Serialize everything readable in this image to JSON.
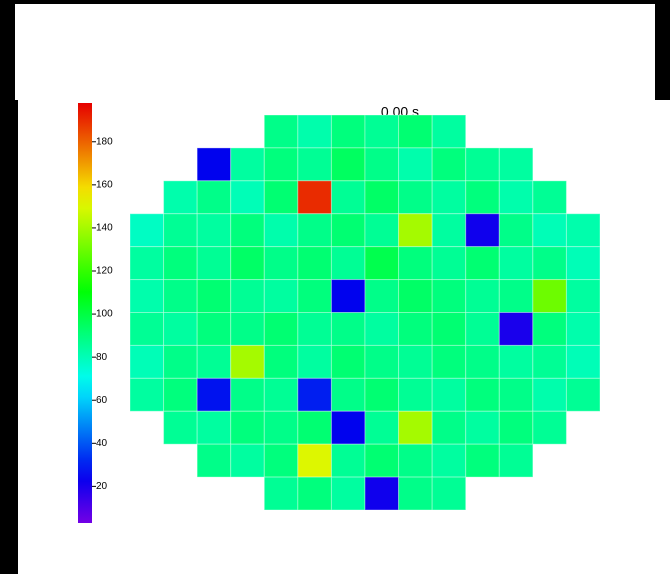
{
  "chart_data": {
    "type": "heatmap",
    "title": "0.00 s",
    "zlim": [
      3,
      198
    ],
    "zticks": [
      20,
      40,
      60,
      80,
      100,
      120,
      140,
      160,
      180
    ],
    "rows": [
      [
        null,
        null,
        null,
        null,
        88,
        82,
        90,
        86,
        92,
        84,
        null,
        null,
        null,
        null
      ],
      [
        null,
        null,
        25,
        84,
        90,
        86,
        95,
        88,
        82,
        90,
        86,
        84,
        null,
        null
      ],
      [
        null,
        82,
        88,
        80,
        92,
        190,
        86,
        94,
        88,
        84,
        90,
        82,
        86,
        null
      ],
      [
        78,
        86,
        84,
        90,
        82,
        88,
        92,
        86,
        140,
        84,
        22,
        88,
        80,
        82
      ],
      [
        84,
        90,
        86,
        94,
        88,
        92,
        86,
        98,
        90,
        86,
        92,
        84,
        88,
        80
      ],
      [
        82,
        88,
        92,
        86,
        84,
        90,
        25,
        88,
        94,
        90,
        86,
        88,
        130,
        84
      ],
      [
        86,
        84,
        90,
        88,
        92,
        86,
        88,
        84,
        90,
        92,
        86,
        20,
        90,
        82
      ],
      [
        80,
        88,
        86,
        140,
        90,
        84,
        92,
        88,
        86,
        90,
        88,
        84,
        86,
        80
      ],
      [
        84,
        90,
        28,
        88,
        86,
        30,
        88,
        92,
        86,
        84,
        90,
        88,
        82,
        86
      ],
      [
        null,
        86,
        84,
        90,
        88,
        92,
        25,
        86,
        140,
        88,
        84,
        90,
        86,
        null
      ],
      [
        null,
        null,
        88,
        84,
        90,
        150,
        86,
        92,
        88,
        84,
        90,
        86,
        null,
        null
      ],
      [
        null,
        null,
        null,
        null,
        86,
        90,
        84,
        22,
        88,
        86,
        null,
        null,
        null,
        null
      ]
    ]
  }
}
